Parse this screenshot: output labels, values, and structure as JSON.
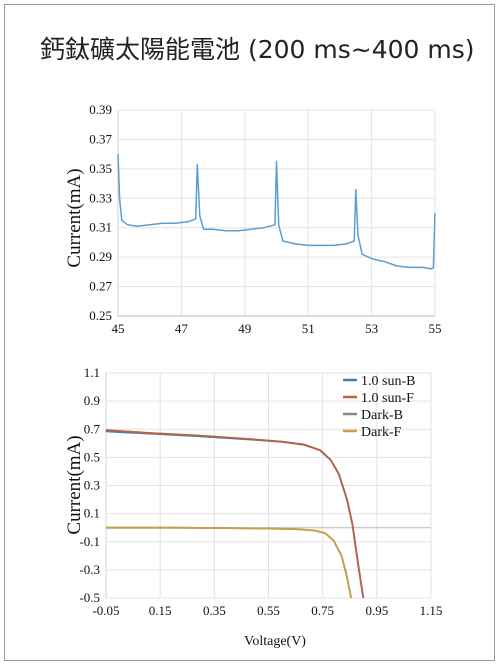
{
  "page": {
    "title": "鈣鈦礦太陽能電池 (200 ms~400 ms)"
  },
  "chart_data": [
    {
      "type": "line",
      "title": "",
      "xlabel": "",
      "ylabel": "Current(mA)",
      "xlim": [
        45,
        55
      ],
      "ylim": [
        0.25,
        0.39
      ],
      "x_ticks": [
        "45",
        "47",
        "49",
        "51",
        "53",
        "55"
      ],
      "y_ticks": [
        "0.25",
        "0.27",
        "0.29",
        "0.31",
        "0.33",
        "0.35",
        "0.37",
        "0.39"
      ],
      "grid": true,
      "legend": "none",
      "series": [
        {
          "color": "#5a9fd4",
          "x": [
            45.0,
            45.05,
            45.12,
            45.3,
            45.6,
            46.0,
            46.4,
            46.8,
            47.2,
            47.45,
            47.5,
            47.58,
            47.7,
            48.0,
            48.4,
            48.8,
            49.2,
            49.6,
            49.95,
            50.0,
            50.07,
            50.2,
            50.6,
            51.0,
            51.4,
            51.8,
            52.2,
            52.45,
            52.5,
            52.57,
            52.7,
            53.0,
            53.4,
            53.8,
            54.2,
            54.6,
            54.9,
            54.95,
            55.0
          ],
          "y": [
            0.36,
            0.33,
            0.315,
            0.312,
            0.311,
            0.312,
            0.313,
            0.313,
            0.314,
            0.316,
            0.353,
            0.318,
            0.309,
            0.309,
            0.308,
            0.308,
            0.309,
            0.31,
            0.312,
            0.355,
            0.312,
            0.301,
            0.299,
            0.298,
            0.298,
            0.298,
            0.299,
            0.301,
            0.336,
            0.305,
            0.292,
            0.289,
            0.287,
            0.284,
            0.283,
            0.283,
            0.282,
            0.283,
            0.32
          ]
        }
      ]
    },
    {
      "type": "line",
      "title": "",
      "xlabel": "Voltage(V)",
      "ylabel": "Current(mA)",
      "xlim": [
        -0.05,
        1.15
      ],
      "ylim": [
        -0.5,
        1.1
      ],
      "x_ticks": [
        "-0.05",
        "0.15",
        "0.35",
        "0.55",
        "0.75",
        "0.95",
        "1.15"
      ],
      "y_ticks": [
        "-0.5",
        "-0.3",
        "-0.1",
        "0.1",
        "0.3",
        "0.5",
        "0.7",
        "0.9",
        "1.1"
      ],
      "grid": true,
      "legend": "top-right",
      "series": [
        {
          "name": "1.0 sun-B",
          "color": "#4a79b8",
          "x": [
            -0.05,
            0.1,
            0.3,
            0.5,
            0.6,
            0.68,
            0.74,
            0.78,
            0.81,
            0.84,
            0.86,
            0.88,
            0.9
          ],
          "y": [
            0.685,
            0.67,
            0.65,
            0.625,
            0.61,
            0.59,
            0.55,
            0.48,
            0.38,
            0.2,
            0.02,
            -0.25,
            -0.5
          ]
        },
        {
          "name": "1.0 sun-F",
          "color": "#b8653f",
          "x": [
            -0.05,
            0.1,
            0.3,
            0.5,
            0.6,
            0.68,
            0.74,
            0.78,
            0.81,
            0.84,
            0.86,
            0.88,
            0.9
          ],
          "y": [
            0.695,
            0.675,
            0.655,
            0.628,
            0.612,
            0.592,
            0.552,
            0.482,
            0.382,
            0.202,
            0.022,
            -0.248,
            -0.5
          ]
        },
        {
          "name": "Dark-B",
          "color": "#8a8a8a",
          "x": [
            -0.05,
            0.2,
            0.5,
            0.65,
            0.72,
            0.76,
            0.79,
            0.82,
            0.84,
            0.855
          ],
          "y": [
            0.0,
            0.0,
            -0.005,
            -0.01,
            -0.02,
            -0.04,
            -0.09,
            -0.2,
            -0.35,
            -0.5
          ]
        },
        {
          "name": "Dark-F",
          "color": "#c9a042",
          "x": [
            -0.05,
            0.2,
            0.5,
            0.65,
            0.72,
            0.76,
            0.79,
            0.82,
            0.84,
            0.855
          ],
          "y": [
            0.0,
            0.0,
            -0.005,
            -0.01,
            -0.02,
            -0.04,
            -0.09,
            -0.2,
            -0.35,
            -0.5
          ]
        }
      ]
    }
  ]
}
